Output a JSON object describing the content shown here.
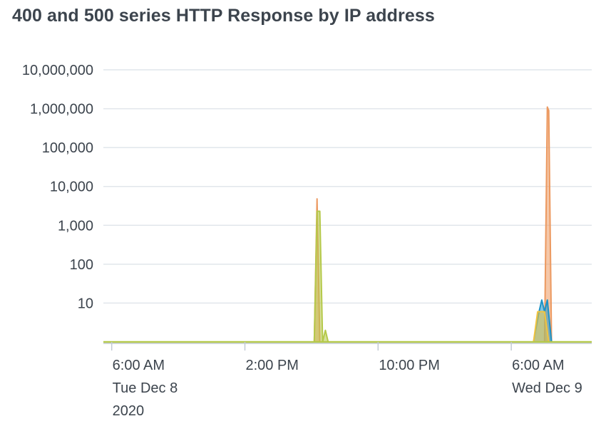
{
  "panel": {
    "title": "400 and 500 series HTTP Response by IP address"
  },
  "chart_data": {
    "type": "area",
    "title": "400 and 500 series HTTP Response by IP address",
    "yscale": "log",
    "ylim": [
      1,
      10000000
    ],
    "ytick_values": [
      10,
      100,
      1000,
      10000,
      100000,
      1000000,
      10000000
    ],
    "ytick_labels": [
      "10",
      "100",
      "1,000",
      "10,000",
      "100,000",
      "1,000,000",
      "10,000,000"
    ],
    "xlim": [
      "2020-12-08T05:30",
      "2020-12-09T10:50"
    ],
    "xticks": [
      {
        "x": "2020-12-08T06:00",
        "lines": [
          "6:00 AM",
          "Tue Dec 8",
          "2020"
        ]
      },
      {
        "x": "2020-12-08T14:00",
        "lines": [
          "2:00 PM"
        ]
      },
      {
        "x": "2020-12-08T22:00",
        "lines": [
          "10:00 PM"
        ]
      },
      {
        "x": "2020-12-09T06:00",
        "lines": [
          "6:00 AM",
          "Wed Dec 9"
        ]
      }
    ],
    "grid": true,
    "legend": "none",
    "series": [
      {
        "color": "#ec9960",
        "points": [
          {
            "x": "2020-12-08T18:10",
            "y": 1
          },
          {
            "x": "2020-12-08T18:20",
            "y": 4800
          },
          {
            "x": "2020-12-08T18:30",
            "y": 1
          },
          {
            "x": "2020-12-09T08:00",
            "y": 1
          },
          {
            "x": "2020-12-09T08:10",
            "y": 1100000
          },
          {
            "x": "2020-12-09T08:15",
            "y": 900000
          },
          {
            "x": "2020-12-09T08:25",
            "y": 1
          }
        ]
      },
      {
        "color": "#b5c94a",
        "points": [
          {
            "x": "2020-12-08T18:10",
            "y": 1
          },
          {
            "x": "2020-12-08T18:20",
            "y": 2300
          },
          {
            "x": "2020-12-08T18:30",
            "y": 2300
          },
          {
            "x": "2020-12-08T18:40",
            "y": 1
          },
          {
            "x": "2020-12-08T18:50",
            "y": 2
          },
          {
            "x": "2020-12-08T19:00",
            "y": 1
          }
        ]
      },
      {
        "color": "#1e93c6",
        "points": [
          {
            "x": "2020-12-09T07:20",
            "y": 1
          },
          {
            "x": "2020-12-09T07:40",
            "y": 6
          },
          {
            "x": "2020-12-09T07:50",
            "y": 12
          },
          {
            "x": "2020-12-09T08:00",
            "y": 6
          },
          {
            "x": "2020-12-09T08:10",
            "y": 12
          },
          {
            "x": "2020-12-09T08:25",
            "y": 1
          }
        ]
      },
      {
        "color": "#f2c43e",
        "points": [
          {
            "x": "2020-12-09T07:20",
            "y": 1
          },
          {
            "x": "2020-12-09T07:35",
            "y": 6
          },
          {
            "x": "2020-12-09T08:00",
            "y": 6
          },
          {
            "x": "2020-12-09T08:15",
            "y": 1
          }
        ]
      }
    ]
  }
}
